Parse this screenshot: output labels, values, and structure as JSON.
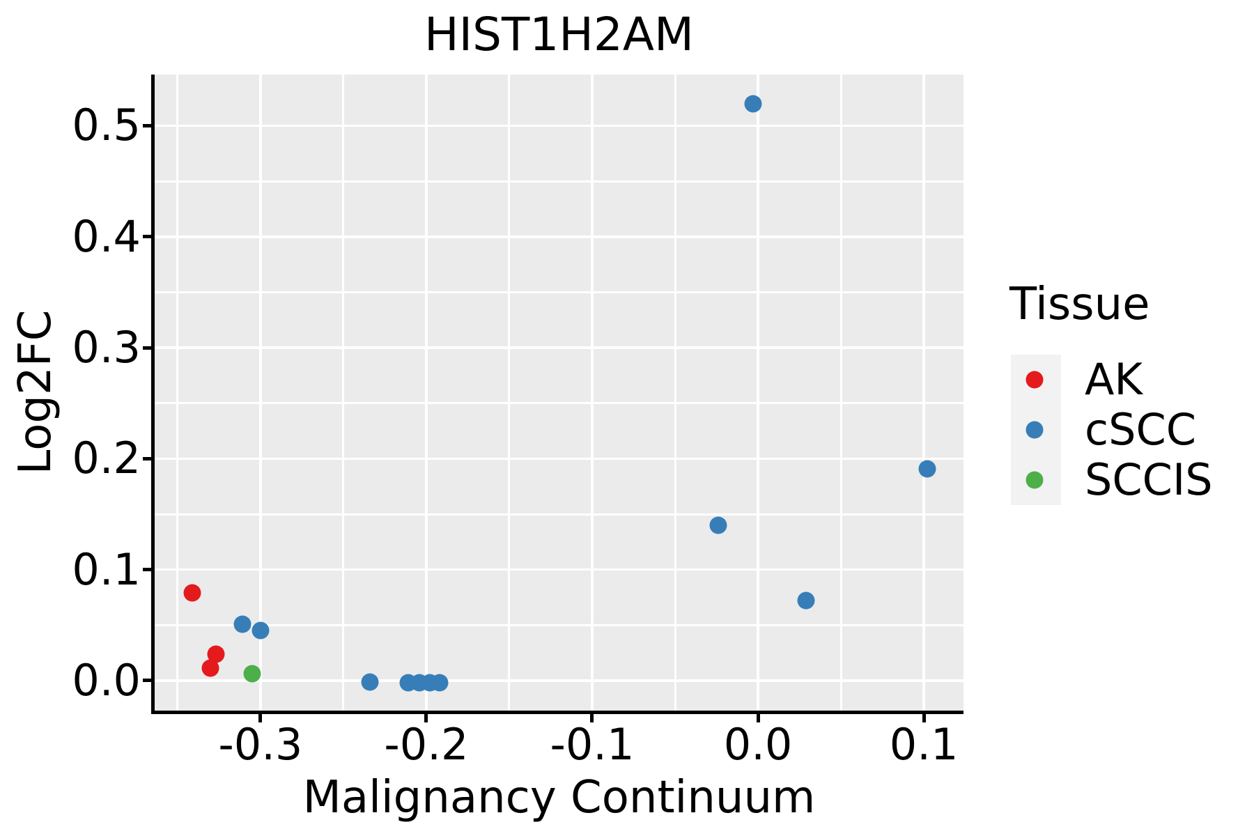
{
  "chart_data": {
    "type": "scatter",
    "title": "HIST1H2AM",
    "xlabel": "Malignancy Continuum",
    "ylabel": "Log2FC",
    "xlim": [
      -0.3638,
      0.1239
    ],
    "ylim": [
      -0.027,
      0.5461
    ],
    "x_ticks": [
      -0.3,
      -0.2,
      -0.1,
      0.0,
      0.1
    ],
    "x_tick_labels": [
      "-0.3",
      "-0.2",
      "-0.1",
      "0.0",
      "0.1"
    ],
    "x_minor_ticks": [
      -0.35,
      -0.25,
      -0.15,
      -0.05,
      0.05
    ],
    "y_ticks": [
      0.0,
      0.1,
      0.2,
      0.3,
      0.4,
      0.5
    ],
    "y_tick_labels": [
      "0.0",
      "0.1",
      "0.2",
      "0.3",
      "0.4",
      "0.5"
    ],
    "y_minor_ticks": [
      0.05,
      0.15,
      0.25,
      0.35,
      0.45
    ],
    "grid": true,
    "panel_bg": "#ebebeb",
    "grid_color": "#ffffff",
    "legend": {
      "title": "Tissue",
      "position": "right",
      "key_bg": "#f2f2f2",
      "entries": [
        {
          "label": "AK",
          "color": "#e41a1c"
        },
        {
          "label": "cSCC",
          "color": "#377eb8"
        },
        {
          "label": "SCCIS",
          "color": "#4daf4a"
        }
      ]
    },
    "series": [
      {
        "name": "AK",
        "color": "#e41a1c",
        "points": [
          [
            -0.341,
            0.079
          ],
          [
            -0.327,
            0.024
          ],
          [
            -0.33,
            0.011
          ]
        ]
      },
      {
        "name": "cSCC",
        "color": "#377eb8",
        "points": [
          [
            -0.311,
            0.051
          ],
          [
            -0.3,
            0.045
          ],
          [
            -0.234,
            -0.001
          ],
          [
            -0.211,
            -0.002
          ],
          [
            -0.204,
            -0.002
          ],
          [
            -0.198,
            -0.002
          ],
          [
            -0.192,
            -0.002
          ],
          [
            -0.003,
            0.52
          ],
          [
            -0.024,
            0.14
          ],
          [
            0.029,
            0.072
          ],
          [
            0.102,
            0.191
          ]
        ]
      },
      {
        "name": "SCCIS",
        "color": "#4daf4a",
        "points": [
          [
            -0.305,
            0.006
          ]
        ]
      }
    ]
  }
}
